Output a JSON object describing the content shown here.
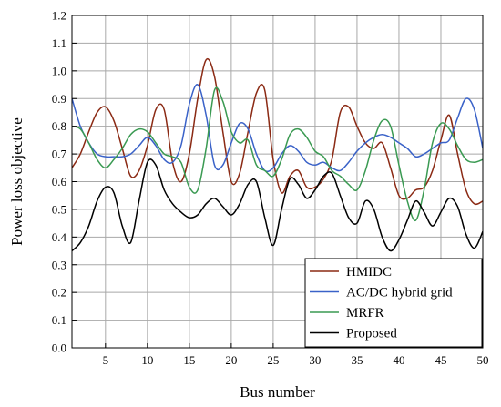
{
  "chart_data": {
    "type": "line",
    "xlabel": "Bus number",
    "ylabel": "Power loss objective",
    "xlim": [
      1,
      50
    ],
    "ylim": [
      0.0,
      1.2
    ],
    "xticks": [
      5,
      10,
      15,
      20,
      25,
      30,
      35,
      40,
      45,
      50
    ],
    "xtick_labels": [
      "5",
      "10",
      "15",
      "20",
      "25",
      "30",
      "35",
      "40",
      "45",
      "50"
    ],
    "yticks": [
      0.0,
      0.1,
      0.2,
      0.3,
      0.4,
      0.5,
      0.6,
      0.7,
      0.8,
      0.9,
      1.0,
      1.1,
      1.2
    ],
    "ytick_labels": [
      "0.0",
      "0.1",
      "0.2",
      "0.3",
      "0.4",
      "0.5",
      "0.6",
      "0.7",
      "0.8",
      "0.9",
      "1.0",
      "1.1",
      "1.2"
    ],
    "grid": true,
    "legend_position": "bottom-right",
    "x": [
      1,
      2,
      3,
      4,
      5,
      6,
      7,
      8,
      9,
      10,
      11,
      12,
      13,
      14,
      15,
      16,
      17,
      18,
      19,
      20,
      21,
      22,
      23,
      24,
      25,
      26,
      27,
      28,
      29,
      30,
      31,
      32,
      33,
      34,
      35,
      36,
      37,
      38,
      39,
      40,
      41,
      42,
      43,
      44,
      45,
      46,
      47,
      48,
      49,
      50
    ],
    "series": [
      {
        "name": "HMIDC",
        "color": "#8b2a14",
        "values": [
          0.65,
          0.7,
          0.78,
          0.85,
          0.87,
          0.82,
          0.72,
          0.62,
          0.64,
          0.73,
          0.86,
          0.86,
          0.67,
          0.6,
          0.7,
          0.9,
          1.04,
          0.98,
          0.78,
          0.6,
          0.63,
          0.78,
          0.92,
          0.93,
          0.68,
          0.56,
          0.62,
          0.64,
          0.58,
          0.58,
          0.61,
          0.68,
          0.85,
          0.87,
          0.8,
          0.74,
          0.72,
          0.74,
          0.65,
          0.55,
          0.54,
          0.57,
          0.58,
          0.64,
          0.75,
          0.84,
          0.7,
          0.57,
          0.52,
          0.53
        ]
      },
      {
        "name": "AC/DC hybrid grid",
        "color": "#3a62c8",
        "values": [
          0.9,
          0.8,
          0.74,
          0.7,
          0.69,
          0.69,
          0.69,
          0.7,
          0.73,
          0.76,
          0.73,
          0.68,
          0.67,
          0.73,
          0.88,
          0.95,
          0.84,
          0.66,
          0.66,
          0.74,
          0.81,
          0.79,
          0.7,
          0.64,
          0.65,
          0.7,
          0.73,
          0.71,
          0.67,
          0.66,
          0.67,
          0.65,
          0.64,
          0.67,
          0.71,
          0.74,
          0.76,
          0.77,
          0.76,
          0.74,
          0.72,
          0.69,
          0.7,
          0.72,
          0.74,
          0.75,
          0.83,
          0.9,
          0.86,
          0.72
        ]
      },
      {
        "name": "MRFR",
        "color": "#3a9a52",
        "values": [
          0.8,
          0.79,
          0.74,
          0.68,
          0.65,
          0.68,
          0.72,
          0.77,
          0.79,
          0.78,
          0.74,
          0.7,
          0.69,
          0.67,
          0.58,
          0.57,
          0.72,
          0.93,
          0.89,
          0.78,
          0.74,
          0.75,
          0.66,
          0.64,
          0.62,
          0.68,
          0.77,
          0.79,
          0.76,
          0.71,
          0.69,
          0.64,
          0.62,
          0.59,
          0.57,
          0.64,
          0.75,
          0.82,
          0.8,
          0.66,
          0.53,
          0.46,
          0.57,
          0.74,
          0.81,
          0.79,
          0.73,
          0.68,
          0.67,
          0.68
        ]
      },
      {
        "name": "Proposed",
        "color": "#000000",
        "values": [
          0.35,
          0.38,
          0.44,
          0.53,
          0.58,
          0.56,
          0.44,
          0.38,
          0.53,
          0.67,
          0.66,
          0.57,
          0.52,
          0.49,
          0.47,
          0.48,
          0.52,
          0.54,
          0.51,
          0.48,
          0.52,
          0.59,
          0.6,
          0.47,
          0.37,
          0.5,
          0.61,
          0.59,
          0.54,
          0.57,
          0.62,
          0.63,
          0.55,
          0.47,
          0.45,
          0.53,
          0.5,
          0.4,
          0.35,
          0.39,
          0.46,
          0.53,
          0.49,
          0.44,
          0.49,
          0.54,
          0.51,
          0.41,
          0.36,
          0.42
        ]
      }
    ]
  }
}
